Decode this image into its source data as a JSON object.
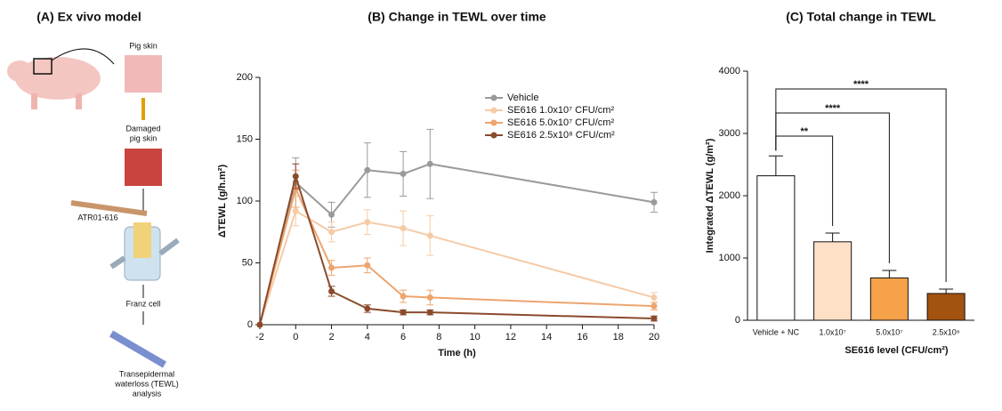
{
  "panel_a": {
    "title": "(A) Ex vivo model",
    "pig_skin": "Pig skin",
    "damaged_skin": [
      "Damaged",
      "pig skin"
    ],
    "device": "ATR01-616",
    "franz": "Franz cell",
    "tewl": [
      "Transepidermal",
      "waterloss (TEWL)",
      "analysis"
    ]
  },
  "chart_data": [
    {
      "type": "line",
      "title": "(B) Change in TEWL over time",
      "x_label": "Time (h)",
      "y_label": "ΔTEWL (g/h.m²)",
      "x": [
        -2,
        0,
        2,
        4,
        6,
        7.5,
        20
      ],
      "xlim": [
        -2,
        20
      ],
      "xticks": [
        -2,
        0,
        2,
        4,
        6,
        8,
        10,
        12,
        14,
        16,
        18,
        20
      ],
      "ylim": [
        0,
        200
      ],
      "yticks": [
        0,
        50,
        100,
        150,
        200
      ],
      "series": [
        {
          "name": "Vehicle",
          "color": "#9a9a9a",
          "values": [
            0,
            115,
            89,
            125,
            122,
            130,
            99
          ],
          "errors": [
            0,
            20,
            10,
            22,
            18,
            28,
            8
          ]
        },
        {
          "name": "SE616 1.0x10⁷ CFU/cm²",
          "color": "#f5cba6",
          "values": [
            0,
            92,
            75,
            83,
            78,
            72,
            22
          ],
          "errors": [
            0,
            12,
            8,
            10,
            14,
            16,
            4
          ]
        },
        {
          "name": "SE616 5.0x10⁷ CFU/cm²",
          "color": "#eda56f",
          "values": [
            0,
            110,
            46,
            48,
            23,
            22,
            15
          ],
          "errors": [
            0,
            15,
            6,
            6,
            5,
            6,
            3
          ]
        },
        {
          "name": "SE616 2.5x10⁸ CFU/cm²",
          "color": "#8a4a2c",
          "values": [
            0,
            120,
            27,
            13,
            10,
            10,
            5
          ],
          "errors": [
            0,
            10,
            4,
            3,
            2,
            2,
            2
          ]
        }
      ]
    },
    {
      "type": "bar",
      "title": "(C) Total change in TEWL",
      "x_label": "SE616 level (CFU/cm²)",
      "y_label": "Integrated ΔTEWL (g/m²)",
      "categories": [
        "Vehicle + NC",
        "1.0x10⁷",
        "5.0x10⁷",
        "2.5x10⁸"
      ],
      "values": [
        2320,
        1260,
        680,
        430
      ],
      "errors": [
        320,
        140,
        120,
        70
      ],
      "colors": [
        "#ffffff",
        "#fde0c6",
        "#f5a24b",
        "#a3520f"
      ],
      "ylim": [
        0,
        4000
      ],
      "yticks": [
        0,
        1000,
        2000,
        3000,
        4000
      ],
      "annotations": [
        "**",
        "****",
        "****"
      ]
    }
  ]
}
